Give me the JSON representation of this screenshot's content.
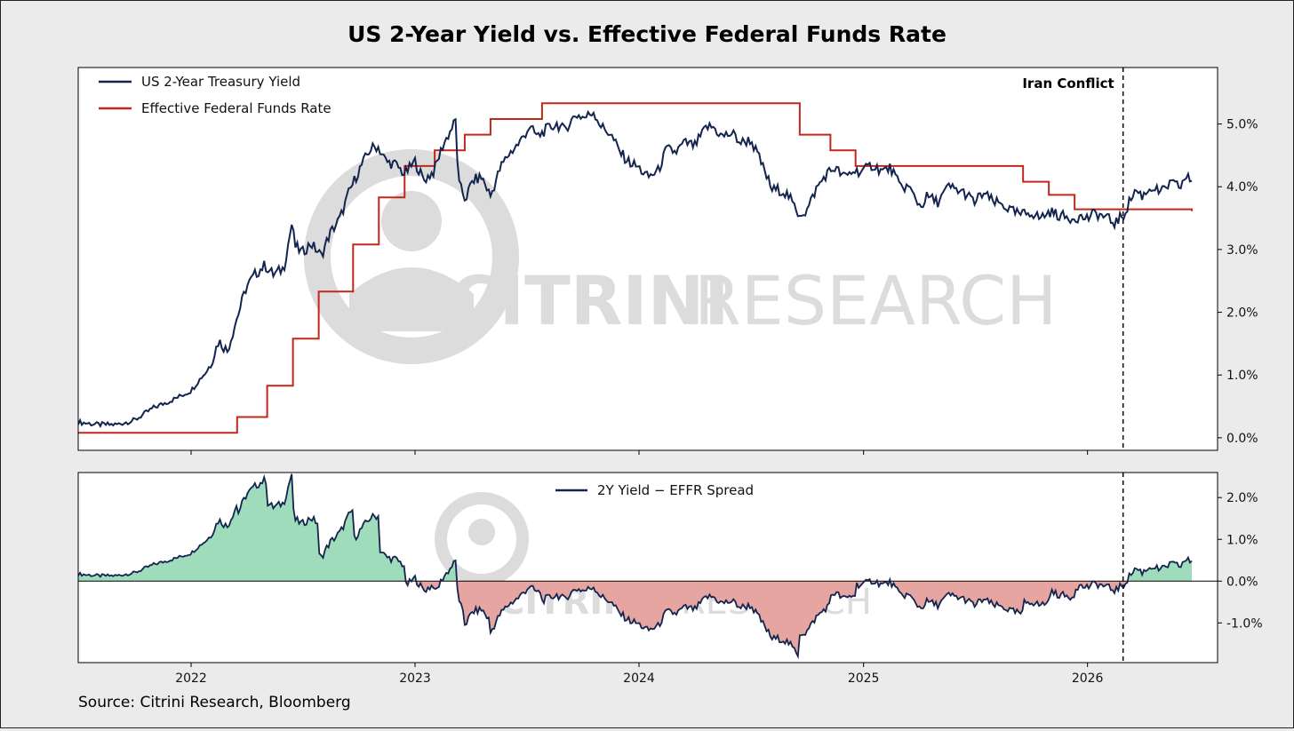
{
  "figure": {
    "title": "US 2-Year Yield vs. Effective Federal Funds Rate",
    "source": "Source: Citrini Research, Bloomberg",
    "watermark": {
      "brand_bold": "CITRINI",
      "brand_light": "RESEARCH"
    },
    "colors": {
      "yield": "#13244f",
      "effr": "#c1271b",
      "positive_fill": "#9fdcbb",
      "negative_fill": "#e6a5a0",
      "watermark": "#d6d6d6"
    }
  },
  "chart_data": [
    {
      "type": "line",
      "legend_position": "upper-left",
      "xlim": [
        "2021-07-01",
        "2026-08-01"
      ],
      "ylim": [
        -0.2,
        5.9
      ],
      "yticks": [
        0,
        1,
        2,
        3,
        4,
        5
      ],
      "ytick_labels": [
        "0.0%",
        "1.0%",
        "2.0%",
        "3.0%",
        "4.0%",
        "5.0%"
      ],
      "annotation": {
        "label": "Iran Conflict",
        "date": "2026-02-28"
      },
      "series": [
        {
          "name": "US 2-Year Treasury Yield",
          "points": [
            [
              "2021-07-01",
              0.25
            ],
            [
              "2021-08-01",
              0.21
            ],
            [
              "2021-09-01",
              0.21
            ],
            [
              "2021-10-01",
              0.28
            ],
            [
              "2021-11-01",
              0.48
            ],
            [
              "2021-12-01",
              0.6
            ],
            [
              "2022-01-01",
              0.75
            ],
            [
              "2022-02-01",
              1.15
            ],
            [
              "2022-02-15",
              1.55
            ],
            [
              "2022-03-01",
              1.38
            ],
            [
              "2022-03-15",
              1.85
            ],
            [
              "2022-04-01",
              2.4
            ],
            [
              "2022-04-15",
              2.6
            ],
            [
              "2022-05-01",
              2.75
            ],
            [
              "2022-05-15",
              2.6
            ],
            [
              "2022-06-01",
              2.7
            ],
            [
              "2022-06-14",
              3.4
            ],
            [
              "2022-06-20",
              3.05
            ],
            [
              "2022-07-01",
              2.95
            ],
            [
              "2022-07-15",
              3.1
            ],
            [
              "2022-08-01",
              2.9
            ],
            [
              "2022-08-15",
              3.25
            ],
            [
              "2022-09-01",
              3.5
            ],
            [
              "2022-09-15",
              3.9
            ],
            [
              "2022-10-01",
              4.25
            ],
            [
              "2022-10-20",
              4.6
            ],
            [
              "2022-11-01",
              4.65
            ],
            [
              "2022-11-15",
              4.4
            ],
            [
              "2022-12-01",
              4.35
            ],
            [
              "2022-12-15",
              4.2
            ],
            [
              "2023-01-01",
              4.4
            ],
            [
              "2023-01-15",
              4.1
            ],
            [
              "2023-02-01",
              4.25
            ],
            [
              "2023-02-15",
              4.65
            ],
            [
              "2023-03-08",
              5.05
            ],
            [
              "2023-03-13",
              4.05
            ],
            [
              "2023-03-24",
              3.8
            ],
            [
              "2023-04-05",
              4.1
            ],
            [
              "2023-04-20",
              4.15
            ],
            [
              "2023-05-04",
              3.85
            ],
            [
              "2023-05-20",
              4.3
            ],
            [
              "2023-06-01",
              4.5
            ],
            [
              "2023-06-20",
              4.7
            ],
            [
              "2023-07-06",
              4.95
            ],
            [
              "2023-07-20",
              4.8
            ],
            [
              "2023-08-01",
              4.9
            ],
            [
              "2023-08-20",
              5.0
            ],
            [
              "2023-09-01",
              4.9
            ],
            [
              "2023-09-20",
              5.15
            ],
            [
              "2023-10-05",
              5.1
            ],
            [
              "2023-10-19",
              5.2
            ],
            [
              "2023-11-01",
              4.95
            ],
            [
              "2023-11-15",
              4.85
            ],
            [
              "2023-12-01",
              4.55
            ],
            [
              "2023-12-15",
              4.4
            ],
            [
              "2024-01-01",
              4.3
            ],
            [
              "2024-01-15",
              4.15
            ],
            [
              "2024-02-01",
              4.25
            ],
            [
              "2024-02-15",
              4.6
            ],
            [
              "2024-03-01",
              4.55
            ],
            [
              "2024-03-15",
              4.7
            ],
            [
              "2024-04-01",
              4.65
            ],
            [
              "2024-04-20",
              4.95
            ],
            [
              "2024-05-01",
              4.95
            ],
            [
              "2024-05-15",
              4.8
            ],
            [
              "2024-06-01",
              4.85
            ],
            [
              "2024-06-15",
              4.7
            ],
            [
              "2024-07-01",
              4.75
            ],
            [
              "2024-07-15",
              4.45
            ],
            [
              "2024-08-05",
              3.95
            ],
            [
              "2024-08-20",
              3.95
            ],
            [
              "2024-09-01",
              3.85
            ],
            [
              "2024-09-15",
              3.58
            ],
            [
              "2024-09-30",
              3.6
            ],
            [
              "2024-10-15",
              3.95
            ],
            [
              "2024-11-01",
              4.2
            ],
            [
              "2024-11-15",
              4.3
            ],
            [
              "2024-12-01",
              4.15
            ],
            [
              "2024-12-15",
              4.25
            ],
            [
              "2025-01-01",
              4.25
            ],
            [
              "2025-01-15",
              4.35
            ],
            [
              "2025-02-01",
              4.25
            ],
            [
              "2025-02-15",
              4.3
            ],
            [
              "2025-03-01",
              4.0
            ],
            [
              "2025-03-15",
              4.0
            ],
            [
              "2025-04-04",
              3.68
            ],
            [
              "2025-04-15",
              3.85
            ],
            [
              "2025-05-01",
              3.75
            ],
            [
              "2025-05-20",
              4.0
            ],
            [
              "2025-06-01",
              3.95
            ],
            [
              "2025-06-15",
              3.9
            ],
            [
              "2025-07-01",
              3.75
            ],
            [
              "2025-07-15",
              3.9
            ],
            [
              "2025-08-01",
              3.75
            ],
            [
              "2025-08-15",
              3.72
            ],
            [
              "2025-09-01",
              3.6
            ],
            [
              "2025-09-15",
              3.55
            ],
            [
              "2025-10-01",
              3.6
            ],
            [
              "2025-10-15",
              3.5
            ],
            [
              "2025-11-01",
              3.6
            ],
            [
              "2025-11-15",
              3.55
            ],
            [
              "2025-12-01",
              3.5
            ],
            [
              "2025-12-15",
              3.52
            ],
            [
              "2026-01-01",
              3.5
            ],
            [
              "2026-01-15",
              3.58
            ],
            [
              "2026-02-01",
              3.5
            ],
            [
              "2026-02-15",
              3.42
            ],
            [
              "2026-03-01",
              3.55
            ],
            [
              "2026-03-10",
              3.75
            ],
            [
              "2026-03-20",
              3.95
            ],
            [
              "2026-04-01",
              3.85
            ],
            [
              "2026-04-15",
              4.0
            ],
            [
              "2026-05-01",
              3.9
            ],
            [
              "2026-05-15",
              4.05
            ],
            [
              "2026-06-01",
              4.0
            ],
            [
              "2026-06-10",
              4.15
            ],
            [
              "2026-06-20",
              4.1
            ]
          ]
        },
        {
          "name": "Effective Federal Funds Rate",
          "step": true,
          "points": [
            [
              "2021-07-01",
              0.08
            ],
            [
              "2022-03-17",
              0.33
            ],
            [
              "2022-05-05",
              0.83
            ],
            [
              "2022-06-16",
              1.58
            ],
            [
              "2022-07-28",
              2.33
            ],
            [
              "2022-09-22",
              3.08
            ],
            [
              "2022-11-03",
              3.83
            ],
            [
              "2022-12-15",
              4.33
            ],
            [
              "2023-02-02",
              4.58
            ],
            [
              "2023-03-23",
              4.83
            ],
            [
              "2023-05-04",
              5.08
            ],
            [
              "2023-07-27",
              5.33
            ],
            [
              "2024-09-19",
              4.83
            ],
            [
              "2024-11-08",
              4.58
            ],
            [
              "2024-12-19",
              4.33
            ],
            [
              "2025-09-18",
              4.08
            ],
            [
              "2025-10-30",
              3.87
            ],
            [
              "2025-12-11",
              3.64
            ],
            [
              "2026-06-20",
              3.61
            ]
          ]
        }
      ]
    },
    {
      "type": "area",
      "legend_position": "upper-center",
      "xlim": [
        "2021-07-01",
        "2026-08-01"
      ],
      "ylim": [
        -1.95,
        2.6
      ],
      "yticks": [
        -1,
        0,
        1,
        2
      ],
      "ytick_labels": [
        "-1.0%",
        "0.0%",
        "1.0%",
        "2.0%"
      ],
      "xtick_labels": [
        "2022",
        "2023",
        "2024",
        "2025",
        "2026"
      ],
      "xtick_dates": [
        "2022-01-01",
        "2023-01-01",
        "2024-01-01",
        "2025-01-01",
        "2026-01-01"
      ],
      "series": [
        {
          "name": "2Y Yield − EFFR Spread",
          "derived_from": [
            "US 2-Year Treasury Yield",
            "Effective Federal Funds Rate"
          ]
        }
      ]
    }
  ]
}
